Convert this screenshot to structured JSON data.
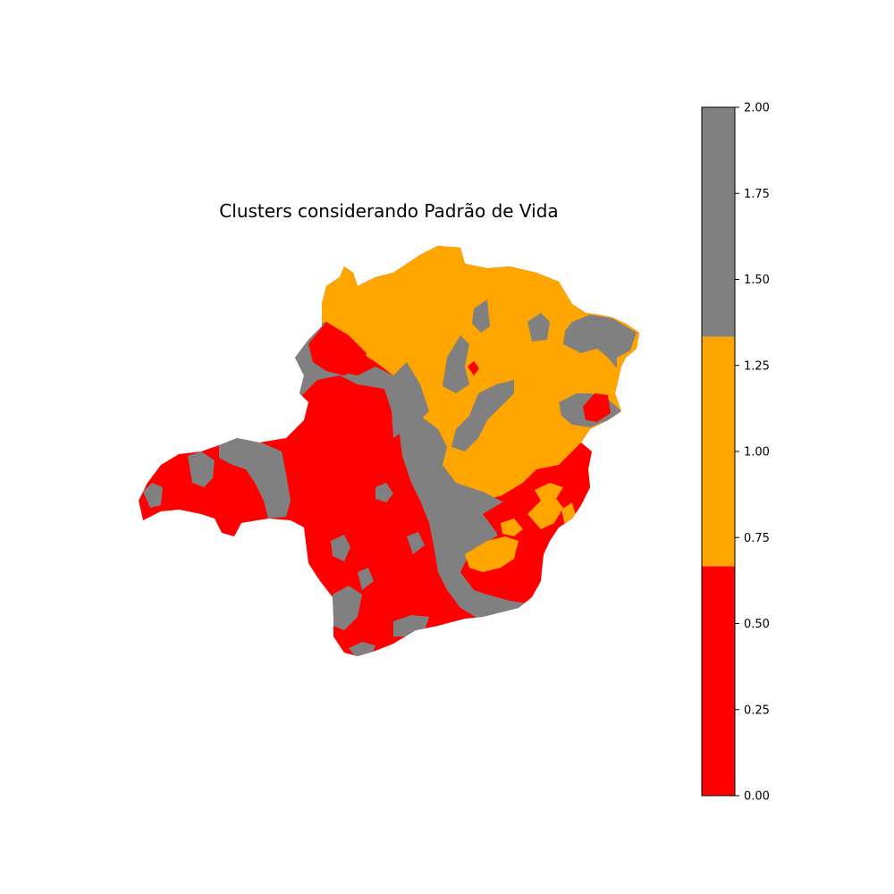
{
  "title": "Clusters considerando Padrão de Vida",
  "colors": {
    "cluster_0": "#ff0000",
    "cluster_1": "#ffa500",
    "cluster_2": "#808080"
  },
  "chart_data": {
    "type": "choropleth",
    "title": "Clusters considerando Padrão de Vida",
    "colorbar": {
      "vmin": 0.0,
      "vmax": 2.0,
      "bands": [
        {
          "from": 0.0,
          "to": 0.6667,
          "color": "#ff0000"
        },
        {
          "from": 0.6667,
          "to": 1.3333,
          "color": "#ffa500"
        },
        {
          "from": 1.3333,
          "to": 2.0,
          "color": "#808080"
        }
      ],
      "ticks": [
        0.0,
        0.25,
        0.5,
        0.75,
        1.0,
        1.25,
        1.5,
        1.75,
        2.0
      ],
      "tick_labels": [
        "0.00",
        "0.25",
        "0.50",
        "0.75",
        "1.00",
        "1.25",
        "1.50",
        "1.75",
        "2.00"
      ]
    }
  }
}
